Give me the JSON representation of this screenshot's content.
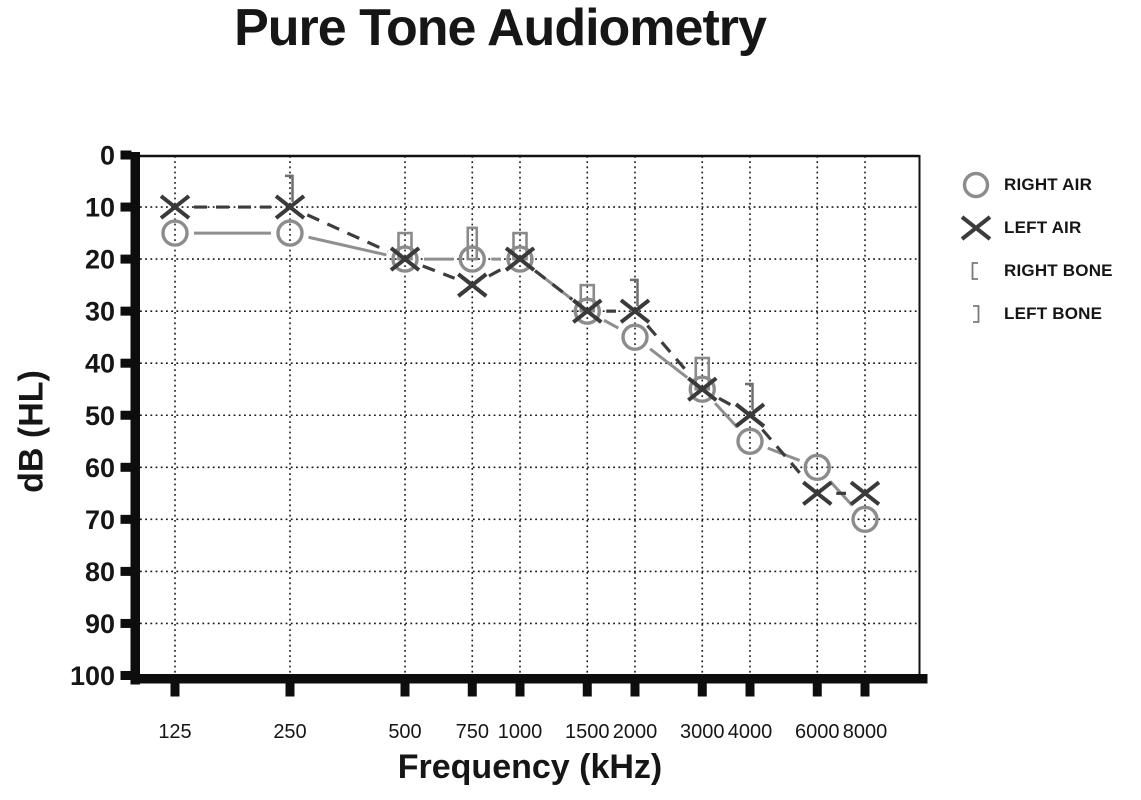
{
  "title": "Pure Tone Audiometry",
  "legend": {
    "items": [
      {
        "symbol": "circle",
        "label": "RIGHT AIR"
      },
      {
        "symbol": "x",
        "label": "LEFT AIR"
      },
      {
        "symbol": "bracket-right",
        "label": "RIGHT BONE"
      },
      {
        "symbol": "bracket-left",
        "label": "LEFT BONE"
      }
    ]
  },
  "chart_data": {
    "type": "line",
    "title": "Pure Tone Audiometry",
    "xlabel": "Frequency (kHz)",
    "ylabel": "dB (HL)",
    "x_scale": "log2",
    "y_inverted": true,
    "ylim": [
      0,
      100
    ],
    "y_tick_step": 10,
    "y_ticks": [
      0,
      10,
      20,
      30,
      40,
      50,
      60,
      70,
      80,
      90,
      100
    ],
    "grid": "dotted-both-axes",
    "legend_position": "right-outside",
    "frequencies": [
      125,
      250,
      500,
      750,
      1000,
      1500,
      2000,
      3000,
      4000,
      6000,
      8000
    ],
    "series": [
      {
        "name": "RIGHT AIR",
        "marker": "circle",
        "line": "solid",
        "values": [
          15,
          15,
          20,
          20,
          20,
          30,
          35,
          45,
          55,
          60,
          70
        ]
      },
      {
        "name": "LEFT AIR",
        "marker": "x",
        "line": "dashed",
        "values": [
          10,
          10,
          20,
          25,
          20,
          30,
          30,
          45,
          50,
          65,
          65
        ]
      }
    ],
    "bone_markers": [
      {
        "freq": 250,
        "shape": "bracket-left",
        "from_db": 4,
        "to_db": 9
      },
      {
        "freq": 500,
        "shape": "rect",
        "from_db": 15,
        "to_db": 20
      },
      {
        "freq": 750,
        "shape": "rect",
        "from_db": 14,
        "to_db": 20,
        "w": 9
      },
      {
        "freq": 1000,
        "shape": "rect",
        "from_db": 15,
        "to_db": 20
      },
      {
        "freq": 1500,
        "shape": "rect",
        "from_db": 25,
        "to_db": 30
      },
      {
        "freq": 2000,
        "shape": "bracket-left",
        "from_db": 24,
        "to_db": 29
      },
      {
        "freq": 3000,
        "shape": "rect",
        "from_db": 39,
        "to_db": 45
      },
      {
        "freq": 4000,
        "shape": "bracket-left",
        "from_db": 44,
        "to_db": 49
      }
    ],
    "colors": {
      "right_air": "#8f8f8f",
      "left_air": "#3d3d3d",
      "bone": "#8a8a8a",
      "grid": "#1a1a1a",
      "axis": "#0d0d0d",
      "text": "#161616"
    }
  }
}
